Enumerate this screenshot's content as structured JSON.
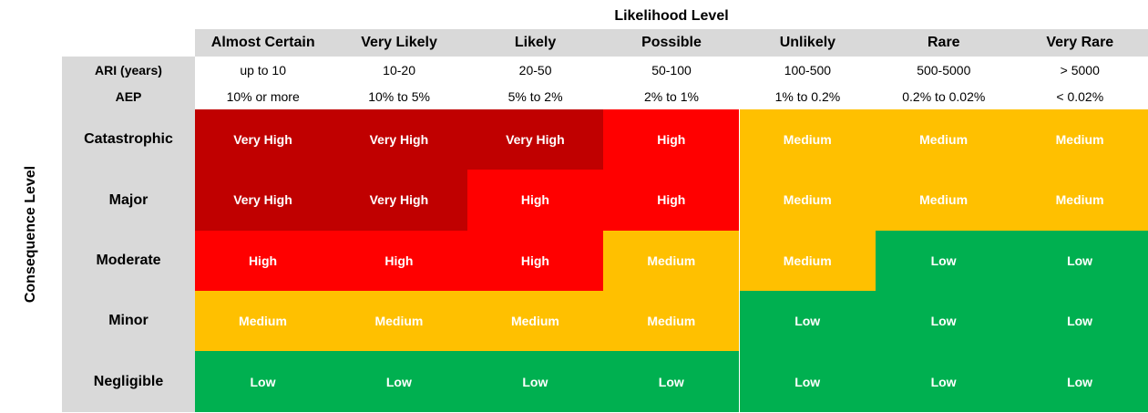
{
  "header": {
    "likelihood_title": "Likelihood Level",
    "consequence_title": "Consequence Level"
  },
  "ari": {
    "label": "ARI (years)",
    "values": [
      "up to 10",
      "10-20",
      "20-50",
      "50-100",
      "100-500",
      "500-5000",
      "> 5000"
    ]
  },
  "aep": {
    "label": "AEP",
    "values": [
      "10% or more",
      "10% to 5%",
      "5% to 2%",
      "2% to 1%",
      "1% to 0.2%",
      "0.2% to 0.02%",
      "< 0.02%"
    ]
  },
  "likelihood_levels": [
    "Almost Certain",
    "Very Likely",
    "Likely",
    "Possible",
    "Unlikely",
    "Rare",
    "Very Rare"
  ],
  "consequence_levels": [
    "Catastrophic",
    "Major",
    "Moderate",
    "Minor",
    "Negligible"
  ],
  "matrix": [
    [
      "Very High",
      "Very High",
      "Very High",
      "High",
      "Medium",
      "Medium",
      "Medium"
    ],
    [
      "Very High",
      "Very High",
      "High",
      "High",
      "Medium",
      "Medium",
      "Medium"
    ],
    [
      "High",
      "High",
      "High",
      "Medium",
      "Medium",
      "Low",
      "Low"
    ],
    [
      "Medium",
      "Medium",
      "Medium",
      "Medium",
      "Low",
      "Low",
      "Low"
    ],
    [
      "Low",
      "Low",
      "Low",
      "Low",
      "Low",
      "Low",
      "Low"
    ]
  ],
  "risk_colors": {
    "Very High": "#c00000",
    "High": "#ff0000",
    "Medium": "#ffc000",
    "Low": "#00b050"
  }
}
